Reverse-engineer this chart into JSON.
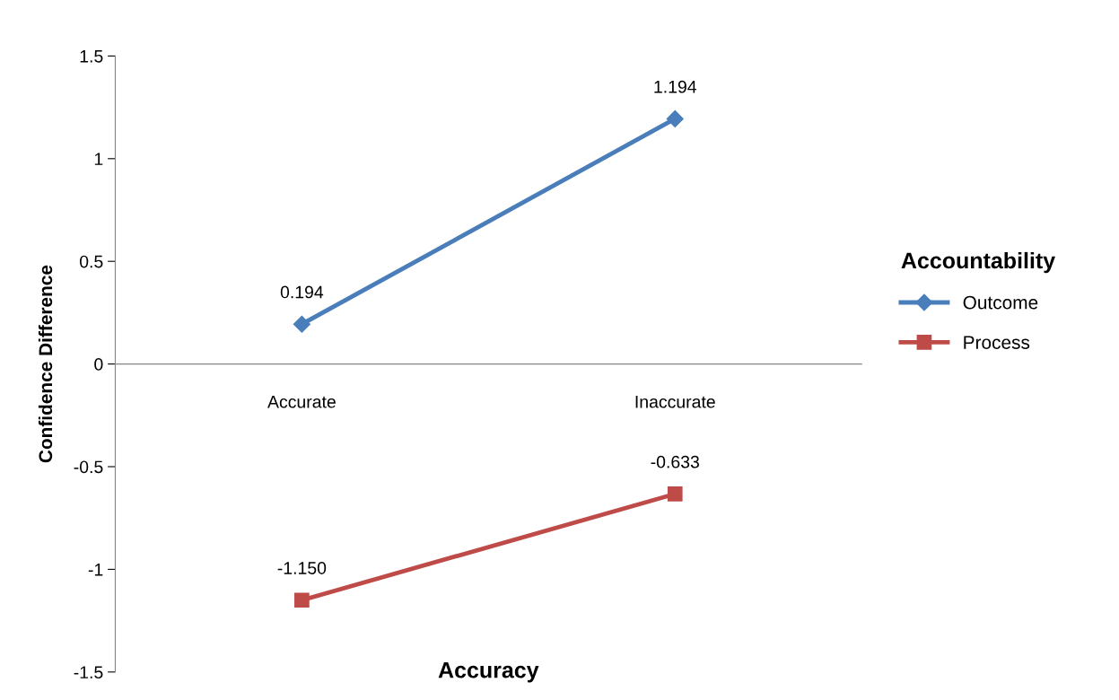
{
  "chart_data": {
    "type": "line",
    "xlabel": "Accuracy",
    "ylabel": "Confidence Difference",
    "legend_title": "Accountability",
    "categories": [
      "Accurate",
      "Inaccurate"
    ],
    "series": [
      {
        "name": "Outcome",
        "color": "#4a7ebb",
        "values": [
          0.194,
          1.194
        ],
        "marker": "diamond",
        "value_labels": [
          "0.194",
          "1.194"
        ]
      },
      {
        "name": "Process",
        "color": "#be4b48",
        "values": [
          -1.15,
          -0.633
        ],
        "marker": "square",
        "value_labels": [
          "-1.150",
          "-0.633"
        ]
      }
    ],
    "ylim": [
      -1.5,
      1.5
    ],
    "yticks": [
      -1.5,
      -1,
      -0.5,
      0,
      0.5,
      1,
      1.5
    ],
    "grid": false,
    "legend": "right",
    "line_style": "solid"
  }
}
